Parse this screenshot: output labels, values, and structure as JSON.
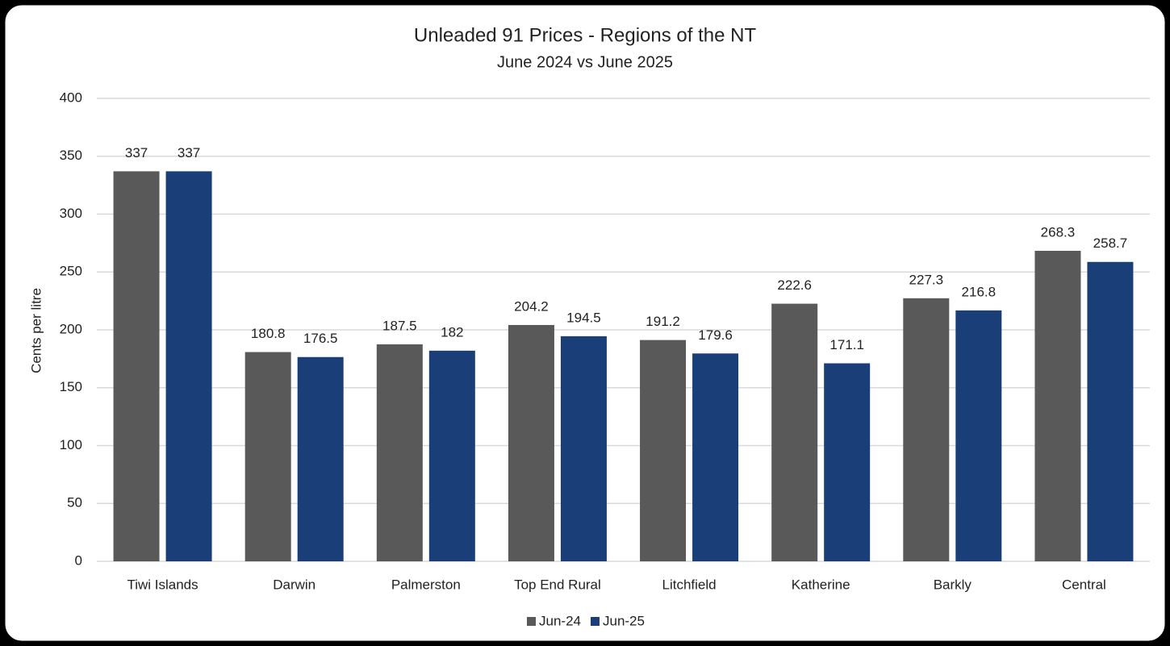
{
  "chart_data": {
    "type": "bar",
    "title": "Unleaded 91 Prices - Regions of the NT",
    "subtitle": "June 2024 vs June 2025",
    "y_label": "Cents per litre",
    "categories": [
      "Tiwi Islands",
      "Darwin",
      "Palmerston",
      "Top End Rural",
      "Litchfield",
      "Katherine",
      "Barkly",
      "Central"
    ],
    "series": [
      {
        "name": "Jun-24",
        "color": "#595959",
        "values": [
          337,
          180.8,
          187.5,
          204.2,
          191.2,
          222.6,
          227.3,
          268.3
        ]
      },
      {
        "name": "Jun-25",
        "color": "#1a3f78",
        "values": [
          337,
          176.5,
          182,
          194.5,
          179.6,
          171.1,
          216.8,
          258.7
        ]
      }
    ],
    "ylim": [
      0,
      400
    ],
    "yticks": [
      0,
      50,
      100,
      150,
      200,
      250,
      300,
      350,
      400
    ],
    "grid": true,
    "legend": "bottom"
  }
}
